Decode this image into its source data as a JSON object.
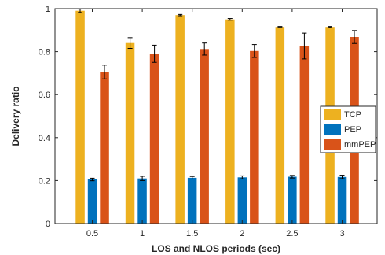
{
  "chart_data": {
    "type": "bar",
    "xlabel": "LOS and NLOS periods (sec)",
    "ylabel": "Delivery ratio",
    "categories": [
      "0.5",
      "1",
      "1.5",
      "2",
      "2.5",
      "3"
    ],
    "ylim": [
      0,
      1
    ],
    "yticks": [
      "0",
      "0.2",
      "0.4",
      "0.6",
      "0.8",
      "1"
    ],
    "grid": false,
    "legend_position": "right",
    "series": [
      {
        "name": "TCP",
        "color": "#EDB120",
        "values": [
          0.99,
          0.84,
          0.97,
          0.95,
          0.915,
          0.915
        ],
        "errors": [
          0.008,
          0.025,
          0.003,
          0.004,
          0.002,
          0.002
        ]
      },
      {
        "name": "PEP",
        "color": "#0072BD",
        "values": [
          0.205,
          0.21,
          0.213,
          0.215,
          0.218,
          0.217
        ],
        "errors": [
          0.006,
          0.01,
          0.006,
          0.007,
          0.006,
          0.008
        ]
      },
      {
        "name": "mmPEP",
        "color": "#D95319",
        "values": [
          0.705,
          0.79,
          0.812,
          0.803,
          0.826,
          0.868
        ],
        "errors": [
          0.032,
          0.04,
          0.028,
          0.03,
          0.06,
          0.03
        ]
      }
    ]
  }
}
